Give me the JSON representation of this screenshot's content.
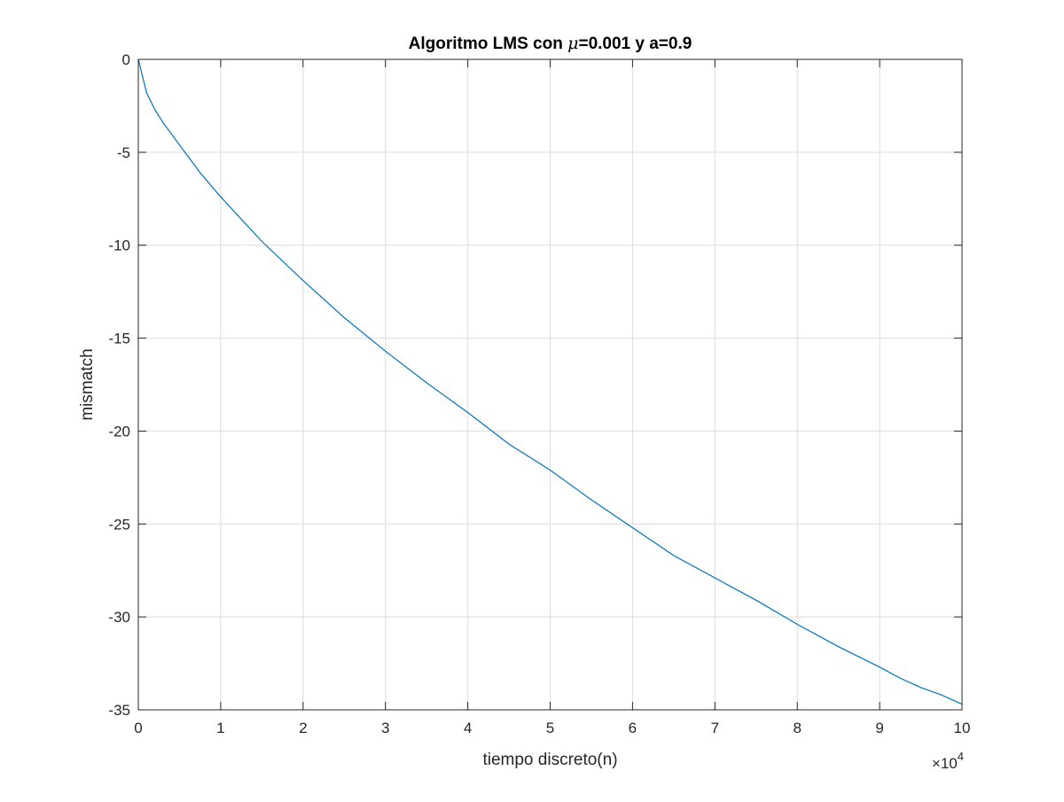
{
  "chart_data": {
    "type": "line",
    "title_parts": {
      "before": "Algoritmo LMS con ",
      "symbol": "μ",
      "after": "=0.001 y a=0.9"
    },
    "xlabel": "tiempo discreto(n)",
    "ylabel": "mismatch",
    "xlim": [
      0,
      100000
    ],
    "ylim": [
      -35,
      0
    ],
    "x_ticks": [
      0,
      10000,
      20000,
      30000,
      40000,
      50000,
      60000,
      70000,
      80000,
      90000,
      100000
    ],
    "x_tick_labels": [
      "0",
      "1",
      "2",
      "3",
      "4",
      "5",
      "6",
      "7",
      "8",
      "9",
      "10"
    ],
    "x_exponent_label": {
      "base": "×10",
      "power": "4"
    },
    "y_ticks": [
      0,
      -5,
      -10,
      -15,
      -20,
      -25,
      -30,
      -35
    ],
    "y_tick_labels": [
      "0",
      "-5",
      "-10",
      "-15",
      "-20",
      "-25",
      "-30",
      "-35"
    ],
    "grid": true,
    "series": [
      {
        "color": "#0072BD",
        "x": [
          0,
          1000,
          2000,
          3000,
          5000,
          7500,
          10000,
          15000,
          20000,
          25000,
          30000,
          35000,
          40000,
          45000,
          50000,
          55000,
          60000,
          65000,
          70000,
          75000,
          80000,
          85000,
          90000,
          92500,
          95000,
          97500,
          100000
        ],
        "y": [
          0,
          -1.8,
          -2.7,
          -3.4,
          -4.6,
          -6.1,
          -7.4,
          -9.8,
          -11.9,
          -13.9,
          -15.7,
          -17.4,
          -19.0,
          -20.7,
          -22.1,
          -23.7,
          -25.2,
          -26.7,
          -27.9,
          -29.1,
          -30.4,
          -31.6,
          -32.7,
          -33.3,
          -33.8,
          -34.2,
          -34.7
        ]
      }
    ]
  }
}
